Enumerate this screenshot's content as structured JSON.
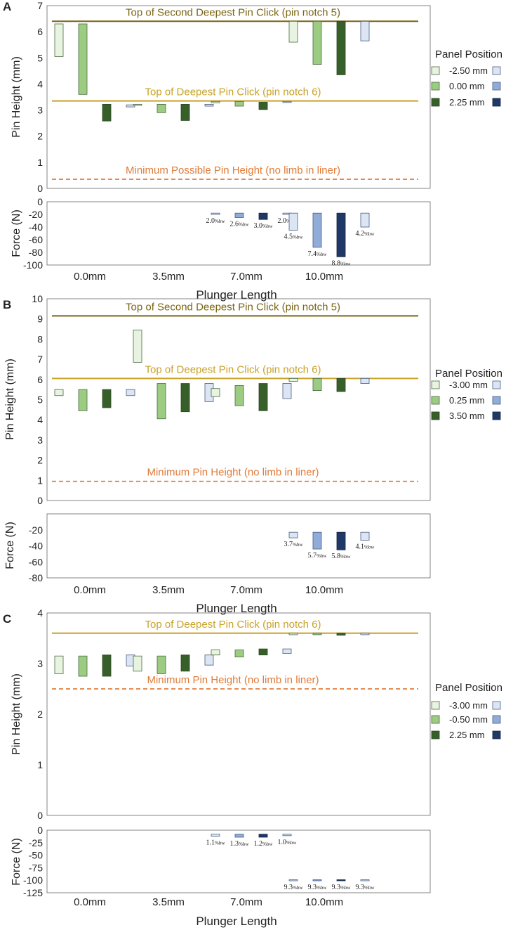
{
  "legend_title": "Panel Position",
  "xlabel": "Plunger Length",
  "panels": [
    {
      "letter": "A",
      "legend_entries": [
        "-2.50 mm",
        "0.00 mm",
        "2.25 mm"
      ],
      "top": {
        "ylabel": "Pin Height (mm)",
        "ylim": [
          0,
          7
        ],
        "ticks": [
          0,
          1,
          2,
          3,
          4,
          5,
          6,
          7
        ],
        "lines": [
          {
            "value": 6.4,
            "label": "Top of Second Deepest Pin Click (pin notch 5)",
            "style": "solid",
            "color": "#7a6514"
          },
          {
            "value": 3.35,
            "label": "Top of Deepest Pin Click (pin notch 6)",
            "style": "solid",
            "color": "#c9a227"
          },
          {
            "value": 0.35,
            "label": "Minimum Possible Pin Height (no limb in liner)",
            "style": "dashed",
            "color": "#e07b39"
          }
        ],
        "bars": [
          [
            [
              5.05,
              6.3
            ],
            [
              3.6,
              6.3
            ],
            [
              2.58,
              3.22
            ],
            [
              3.12,
              3.2
            ]
          ],
          [
            [
              3.18,
              3.22
            ],
            [
              2.9,
              3.22
            ],
            [
              2.6,
              3.22
            ],
            [
              3.15,
              3.22
            ]
          ],
          [
            [
              3.28,
              3.33
            ],
            [
              3.15,
              3.33
            ],
            [
              3.02,
              3.3
            ],
            [
              3.3,
              3.33
            ]
          ],
          [
            [
              5.6,
              6.4
            ],
            [
              4.75,
              6.4
            ],
            [
              4.35,
              6.4
            ],
            [
              5.65,
              6.4
            ]
          ]
        ]
      },
      "force": {
        "ylabel": "Force (N)",
        "ylim": [
          -100,
          0
        ],
        "ticks": [
          0,
          -20,
          -40,
          -60,
          -80,
          -100
        ],
        "bars": [
          [
            null,
            null,
            null,
            null
          ],
          [
            null,
            null,
            null,
            null
          ],
          [
            [
              -20,
              -18
            ],
            [
              -25,
              -18
            ],
            [
              -28,
              -18
            ],
            [
              -20,
              -18
            ]
          ],
          [
            [
              -45,
              -18
            ],
            [
              -72,
              -18
            ],
            [
              -87,
              -18
            ],
            [
              -40,
              -18
            ]
          ]
        ],
        "labels": [
          [
            null,
            null,
            null,
            null
          ],
          [
            null,
            null,
            null,
            null
          ],
          [
            {
              "value": "2.0",
              "unit": "%bw"
            },
            {
              "value": "2.6",
              "unit": "%bw"
            },
            {
              "value": "3.0",
              "unit": "%bw"
            },
            {
              "value": "2.0",
              "unit": "%bw"
            }
          ],
          [
            {
              "value": "4.5",
              "unit": "%bw"
            },
            {
              "value": "7.4",
              "unit": "%bw"
            },
            {
              "value": "8.8",
              "unit": "%bw"
            },
            {
              "value": "4.2",
              "unit": "%bw"
            }
          ]
        ]
      }
    },
    {
      "letter": "B",
      "legend_entries": [
        "-3.00 mm",
        "0.25 mm",
        "3.50 mm"
      ],
      "top": {
        "ylabel": "Pin Height (mm)",
        "ylim": [
          0,
          10
        ],
        "ticks": [
          0,
          1,
          2,
          3,
          4,
          5,
          6,
          7,
          8,
          9,
          10
        ],
        "lines": [
          {
            "value": 9.15,
            "label": "Top of Second Deepest Pin Click (pin notch 5)",
            "style": "solid",
            "color": "#7a6514"
          },
          {
            "value": 6.05,
            "label": "Top of Deepest Pin Click (pin notch 6)",
            "style": "solid",
            "color": "#c9a227"
          },
          {
            "value": 0.95,
            "label": "Minimum Pin Height (no limb in liner)",
            "style": "dashed",
            "color": "#e07b39"
          }
        ],
        "bars": [
          [
            [
              5.2,
              5.5
            ],
            [
              4.45,
              5.5
            ],
            [
              4.6,
              5.5
            ],
            [
              5.2,
              5.5
            ]
          ],
          [
            [
              6.85,
              8.45
            ],
            [
              4.05,
              5.8
            ],
            [
              4.4,
              5.8
            ],
            [
              4.9,
              5.8
            ]
          ],
          [
            [
              5.15,
              5.55
            ],
            [
              4.7,
              5.7
            ],
            [
              4.45,
              5.8
            ],
            [
              5.05,
              5.8
            ]
          ],
          [
            [
              5.9,
              6.05
            ],
            [
              5.45,
              6.05
            ],
            [
              5.4,
              6.05
            ],
            [
              5.8,
              6.05
            ]
          ]
        ]
      },
      "force": {
        "ylabel": "Force (N)",
        "ylim": [
          -80,
          0
        ],
        "ticks": [
          -20,
          -40,
          -60,
          -80
        ],
        "bars": [
          [
            null,
            null,
            null,
            null
          ],
          [
            null,
            null,
            null,
            null
          ],
          [
            null,
            null,
            null,
            null
          ],
          [
            [
              -30,
              -23
            ],
            [
              -44,
              -23
            ],
            [
              -45,
              -23
            ],
            [
              -33,
              -23
            ]
          ]
        ],
        "labels": [
          [
            null,
            null,
            null,
            null
          ],
          [
            null,
            null,
            null,
            null
          ],
          [
            null,
            null,
            null,
            null
          ],
          [
            {
              "value": "3.7",
              "unit": "%bw"
            },
            {
              "value": "5.7",
              "unit": "%bw"
            },
            {
              "value": "5.8",
              "unit": "%bw"
            },
            {
              "value": "4.1",
              "unit": "%bw"
            }
          ]
        ]
      }
    },
    {
      "letter": "C",
      "legend_entries": [
        "-3.00 mm",
        "-0.50 mm",
        "2.25 mm"
      ],
      "top": {
        "ylabel": "Pin Height  (mm)",
        "ylim": [
          0,
          4
        ],
        "ticks": [
          0,
          1,
          2,
          3,
          4
        ],
        "lines": [
          {
            "value": 3.6,
            "label": "Top of Deepest Pin Click (pin notch 6)",
            "style": "solid",
            "color": "#c9a227"
          },
          {
            "value": 2.5,
            "label": "Minimum Pin Height (no limb in liner)",
            "style": "dashed",
            "color": "#e07b39"
          }
        ],
        "bars": [
          [
            [
              2.8,
              3.15
            ],
            [
              2.75,
              3.15
            ],
            [
              2.75,
              3.17
            ],
            [
              2.95,
              3.17
            ]
          ],
          [
            [
              2.85,
              3.15
            ],
            [
              2.8,
              3.15
            ],
            [
              2.85,
              3.17
            ],
            [
              2.97,
              3.17
            ]
          ],
          [
            [
              3.17,
              3.27
            ],
            [
              3.13,
              3.27
            ],
            [
              3.17,
              3.29
            ],
            [
              3.2,
              3.29
            ]
          ],
          [
            [
              3.57,
              3.6
            ],
            [
              3.57,
              3.6
            ],
            [
              3.56,
              3.6
            ],
            [
              3.57,
              3.6
            ]
          ]
        ]
      },
      "force": {
        "ylabel": "Force (N)",
        "ylim": [
          -125,
          0
        ],
        "ticks": [
          0,
          -25,
          -50,
          -75,
          -100,
          -125
        ],
        "bars": [
          [
            null,
            null,
            null,
            null
          ],
          [
            null,
            null,
            null,
            null
          ],
          [
            [
              -12,
              -8
            ],
            [
              -14,
              -8
            ],
            [
              -14,
              -8
            ],
            [
              -11,
              -8
            ]
          ],
          [
            [
              -101,
              -99
            ],
            [
              -101,
              -99
            ],
            [
              -101,
              -99
            ],
            [
              -101,
              -99
            ]
          ]
        ],
        "labels": [
          [
            null,
            null,
            null,
            null
          ],
          [
            null,
            null,
            null,
            null
          ],
          [
            {
              "value": "1.1",
              "unit": "%bw"
            },
            {
              "value": "1.3",
              "unit": "%bw"
            },
            {
              "value": "1.2",
              "unit": "%bw"
            },
            {
              "value": "1.0",
              "unit": "%bw"
            }
          ],
          [
            {
              "value": "9.3",
              "unit": "%bw"
            },
            {
              "value": "9.3",
              "unit": "%bw"
            },
            {
              "value": "9.3",
              "unit": "%bw"
            },
            {
              "value": "9.3",
              "unit": "%bw"
            }
          ]
        ]
      }
    }
  ],
  "categories": [
    "0.0mm",
    "3.5mm",
    "7.0mm",
    "10.0mm"
  ],
  "series_fills": [
    "#e8f3e1",
    "#9ccc82",
    "#375f2a",
    "#dbe5f4",
    "#90acd8",
    "#1f3866"
  ],
  "series_strokes": [
    "#4a6a40",
    "#4a6a40",
    "#2b4a20",
    "#4a5e80",
    "#4a5e80",
    "#122444"
  ],
  "chart_data": [
    {
      "type": "bar",
      "title": "A",
      "categories": [
        "0.0mm",
        "3.5mm",
        "7.0mm",
        "10.0mm"
      ],
      "xlabel": "Plunger Length",
      "ylabel": "Pin Height (mm)",
      "ylim": [
        0,
        7
      ],
      "series_legend": [
        "-2.50 mm",
        "0.00 mm",
        "2.25 mm"
      ],
      "reference_lines": [
        6.4,
        3.35,
        0.35
      ],
      "force_ylabel": "Force (N)",
      "force_ylim": [
        -100,
        0
      ],
      "force_labels_pct_bw": [
        [
          null,
          null,
          null,
          null
        ],
        [
          null,
          null,
          null,
          null
        ],
        [
          2.0,
          2.6,
          3.0,
          2.0
        ],
        [
          4.5,
          7.4,
          8.8,
          4.2
        ]
      ]
    },
    {
      "type": "bar",
      "title": "B",
      "categories": [
        "0.0mm",
        "3.5mm",
        "7.0mm",
        "10.0mm"
      ],
      "xlabel": "Plunger Length",
      "ylabel": "Pin Height (mm)",
      "ylim": [
        0,
        10
      ],
      "series_legend": [
        "-3.00 mm",
        "0.25 mm",
        "3.50 mm"
      ],
      "reference_lines": [
        9.15,
        6.05,
        0.95
      ],
      "force_ylabel": "Force (N)",
      "force_ylim": [
        -80,
        0
      ],
      "force_labels_pct_bw": [
        [
          null,
          null,
          null,
          null
        ],
        [
          null,
          null,
          null,
          null
        ],
        [
          null,
          null,
          null,
          null
        ],
        [
          3.7,
          5.7,
          5.8,
          4.1
        ]
      ]
    },
    {
      "type": "bar",
      "title": "C",
      "categories": [
        "0.0mm",
        "3.5mm",
        "7.0mm",
        "10.0mm"
      ],
      "xlabel": "Plunger Length",
      "ylabel": "Pin Height (mm)",
      "ylim": [
        0,
        4
      ],
      "series_legend": [
        "-3.00 mm",
        "-0.50 mm",
        "2.25 mm"
      ],
      "reference_lines": [
        3.6,
        2.5
      ],
      "force_ylabel": "Force (N)",
      "force_ylim": [
        -125,
        0
      ],
      "force_labels_pct_bw": [
        [
          null,
          null,
          null,
          null
        ],
        [
          null,
          null,
          null,
          null
        ],
        [
          1.1,
          1.3,
          1.2,
          1.0
        ],
        [
          9.3,
          9.3,
          9.3,
          9.3
        ]
      ]
    }
  ]
}
